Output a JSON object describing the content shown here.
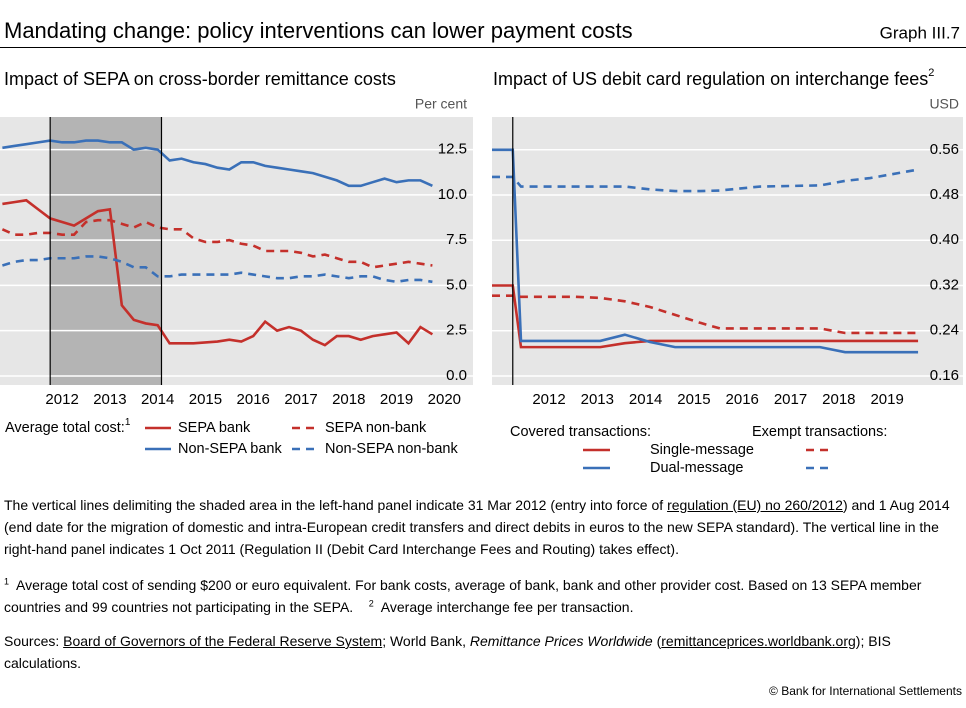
{
  "header": {
    "title": "Mandating change: policy interventions can lower payment costs",
    "label": "Graph III.7"
  },
  "chart_data": [
    {
      "type": "line",
      "title": "Impact of SEPA on cross-border remittance costs",
      "y_unit": "Per cent",
      "x": [
        2011.25,
        2011.5,
        2011.75,
        2012,
        2012.25,
        2012.5,
        2012.75,
        2013,
        2013.25,
        2013.5,
        2013.75,
        2014,
        2014.25,
        2014.5,
        2014.75,
        2015,
        2015.25,
        2015.5,
        2015.75,
        2016,
        2016.25,
        2016.5,
        2016.75,
        2017,
        2017.25,
        2017.5,
        2017.75,
        2018,
        2018.25,
        2018.5,
        2018.75,
        2019,
        2019.25,
        2019.5,
        2019.75,
        2020,
        2020.25
      ],
      "xlim": [
        2011.2,
        2021.1
      ],
      "xticks": [
        {
          "value": 2012.5,
          "label": "2012"
        },
        {
          "value": 2013.5,
          "label": "2013"
        },
        {
          "value": 2014.5,
          "label": "2014"
        },
        {
          "value": 2015.5,
          "label": "2015"
        },
        {
          "value": 2016.5,
          "label": "2016"
        },
        {
          "value": 2017.5,
          "label": "2017"
        },
        {
          "value": 2018.5,
          "label": "2018"
        },
        {
          "value": 2019.5,
          "label": "2019"
        },
        {
          "value": 2020.5,
          "label": "2020"
        }
      ],
      "ylim": [
        -0.5,
        14.3
      ],
      "yticks": [
        {
          "value": 0,
          "label": "0.0"
        },
        2.5,
        {
          "value": 5,
          "label": "5.0"
        },
        7.5,
        {
          "value": 10,
          "label": "10.0"
        },
        12.5
      ],
      "grid": true,
      "shade": [
        2012.25,
        2014.58
      ],
      "vlines": [
        2012.25,
        2014.58
      ],
      "legend": {
        "title": "Average total cost:",
        "title_note": "1"
      },
      "series": [
        {
          "name": "SEPA bank",
          "color": "#c4302b",
          "dash": false,
          "values": [
            9.5,
            9.6,
            9.7,
            9.2,
            8.7,
            8.5,
            8.3,
            8.7,
            9.1,
            9.2,
            3.9,
            3.1,
            2.9,
            2.8,
            1.8,
            1.8,
            1.8,
            1.85,
            1.9,
            2.0,
            1.9,
            2.2,
            3.0,
            2.5,
            2.7,
            2.5,
            2.0,
            1.7,
            2.2,
            2.2,
            2.0,
            2.2,
            2.3,
            2.4,
            1.8,
            2.7,
            2.3
          ]
        },
        {
          "name": "SEPA non-bank",
          "color": "#c4302b",
          "dash": true,
          "values": [
            8.1,
            7.8,
            7.8,
            7.9,
            7.9,
            7.8,
            7.8,
            8.5,
            8.6,
            8.6,
            8.4,
            8.2,
            8.5,
            8.2,
            8.1,
            8.1,
            7.6,
            7.4,
            7.4,
            7.5,
            7.3,
            7.2,
            6.9,
            6.9,
            6.9,
            6.8,
            6.6,
            6.7,
            6.5,
            6.3,
            6.3,
            6.0,
            6.1,
            6.2,
            6.3,
            6.2,
            6.1
          ]
        },
        {
          "name": "Non-SEPA bank",
          "color": "#3a70b8",
          "dash": false,
          "values": [
            12.6,
            12.7,
            12.8,
            12.9,
            13.0,
            12.9,
            12.9,
            13.0,
            13.0,
            12.9,
            12.9,
            12.5,
            12.6,
            12.5,
            11.9,
            12.0,
            11.8,
            11.7,
            11.5,
            11.4,
            11.8,
            11.8,
            11.6,
            11.5,
            11.4,
            11.3,
            11.2,
            11.0,
            10.8,
            10.5,
            10.5,
            10.7,
            10.9,
            10.7,
            10.8,
            10.8,
            10.5
          ]
        },
        {
          "name": "Non-SEPA non-bank",
          "color": "#3a70b8",
          "dash": true,
          "values": [
            6.1,
            6.3,
            6.4,
            6.4,
            6.5,
            6.5,
            6.5,
            6.6,
            6.6,
            6.5,
            6.3,
            6.0,
            6.0,
            5.5,
            5.5,
            5.6,
            5.6,
            5.6,
            5.6,
            5.6,
            5.7,
            5.6,
            5.5,
            5.4,
            5.4,
            5.5,
            5.5,
            5.6,
            5.5,
            5.4,
            5.5,
            5.5,
            5.3,
            5.2,
            5.3,
            5.3,
            5.2
          ]
        }
      ]
    },
    {
      "type": "line",
      "title": "Impact of US debit card regulation on interchange fees",
      "title_note": "2",
      "y_unit": "USD",
      "x": [
        2011.32,
        2011.75,
        2011.92,
        2013.04,
        2013.56,
        2014.07,
        2014.59,
        2015.11,
        2015.63,
        2016.04,
        2016.87,
        2018.11,
        2018.63,
        2019.15,
        2020.14
      ],
      "xlim": [
        2011.32,
        2021.07
      ],
      "xticks": [
        {
          "value": 2012.5,
          "label": "2012"
        },
        {
          "value": 2013.5,
          "label": "2013"
        },
        {
          "value": 2014.5,
          "label": "2014"
        },
        {
          "value": 2015.5,
          "label": "2015"
        },
        {
          "value": 2016.5,
          "label": "2016"
        },
        {
          "value": 2017.5,
          "label": "2017"
        },
        {
          "value": 2018.5,
          "label": "2018"
        },
        {
          "value": 2019.5,
          "label": "2019"
        }
      ],
      "ylim": [
        0.144,
        0.618
      ],
      "yticks": [
        0.16,
        0.24,
        0.32,
        {
          "value": 0.4,
          "label": "0.40"
        },
        {
          "value": 0.48,
          "label": "0.48"
        },
        0.56
      ],
      "grid": true,
      "vlines": [
        2011.75
      ],
      "legend": {
        "columns": [
          "Covered transactions:",
          "Exempt transactions:"
        ],
        "rows": [
          "Single-message",
          "Dual-message"
        ]
      },
      "series": [
        {
          "color": "#c4302b",
          "dash": false,
          "legend_row": 0,
          "legend_column": 0,
          "values": [
            0.32,
            0.32,
            0.211,
            0.211,
            0.211,
            0.218,
            0.222,
            0.222,
            0.222,
            0.222,
            0.222,
            0.222,
            0.222,
            0.222,
            0.222
          ]
        },
        {
          "color": "#3a70b8",
          "dash": false,
          "legend_row": 1,
          "legend_column": 0,
          "values": [
            0.56,
            0.56,
            0.222,
            0.222,
            0.222,
            0.233,
            0.22,
            0.211,
            0.211,
            0.211,
            0.211,
            0.211,
            0.202,
            0.202,
            0.202
          ]
        },
        {
          "color": "#c4302b",
          "dash": true,
          "legend_row": 0,
          "legend_column": 1,
          "values": [
            0.302,
            0.302,
            0.3,
            0.3,
            0.298,
            0.292,
            0.282,
            0.268,
            0.254,
            0.244,
            0.244,
            0.244,
            0.236,
            0.236,
            0.236
          ]
        },
        {
          "color": "#3a70b8",
          "dash": true,
          "legend_row": 1,
          "legend_column": 1,
          "values": [
            0.512,
            0.512,
            0.495,
            0.495,
            0.495,
            0.495,
            0.49,
            0.487,
            0.487,
            0.488,
            0.495,
            0.497,
            0.505,
            0.51,
            0.525
          ]
        }
      ]
    }
  ],
  "note": [
    "The vertical lines delimiting the shaded area in the left-hand panel indicate 31 Mar 2012 (entry into force of ",
    "regulation (EU) no 260/2012",
    ") and 1 Aug 2014 (end date for the migration of domestic and intra-European credit transfers and direct debits in euros to the new SEPA standard). The vertical line in the right-hand panel indicates 1 Oct 2011 (Regulation II (Debit Card Interchange Fees and Routing) takes effect)."
  ],
  "footnotes": [
    {
      "mark": "1",
      "text": "Average total cost of sending $200 or euro equivalent. For bank costs, average of bank, bank and other provider cost. Based on 13 SEPA member countries and 99 countries not participating in the SEPA."
    },
    {
      "mark": "2",
      "text": "Average interchange fee per transaction."
    }
  ],
  "sources": [
    "Sources: ",
    "Board of Governors of the Federal Reserve System",
    "; World Bank, ",
    "Remittance Prices Worldwide",
    " (",
    "remittanceprices.worldbank.org",
    "); BIS calculations."
  ],
  "copyright": "© Bank for International Settlements"
}
